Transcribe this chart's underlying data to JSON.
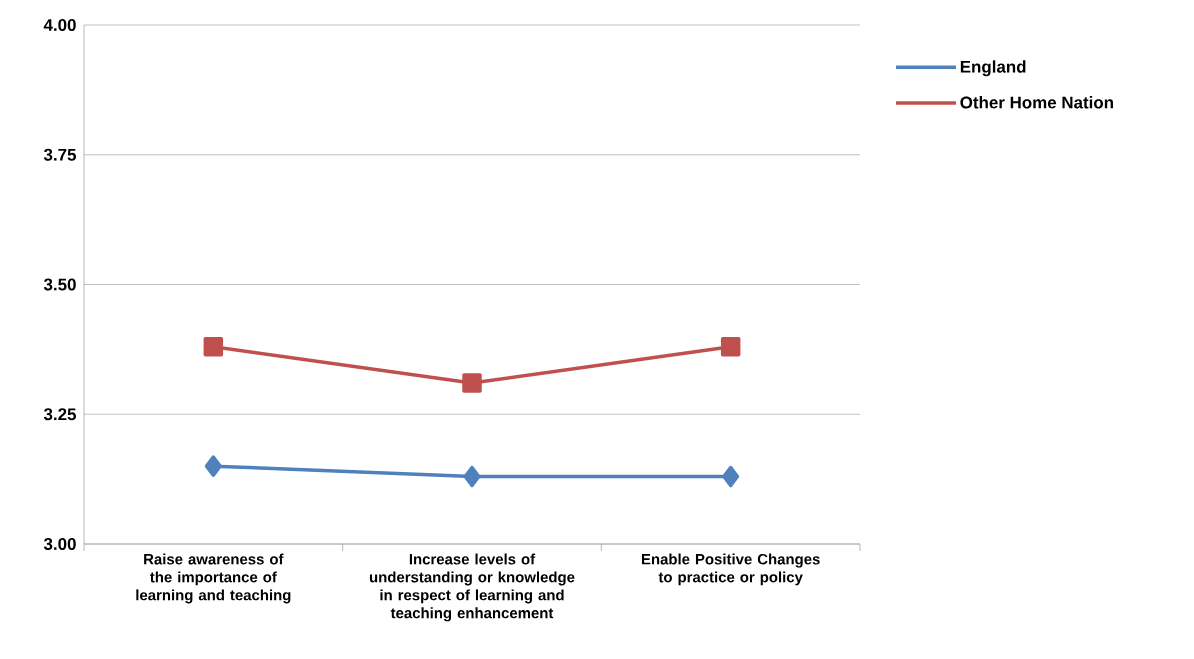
{
  "chart_data": {
    "type": "line",
    "categories": [
      "Raise awareness of the importance of learning and teaching",
      "Increase levels of understanding or knowledge in respect of learning and teaching enhancement",
      "Enable Positive Changes to practice or policy"
    ],
    "series": [
      {
        "name": "England",
        "color": "#4f81bd",
        "marker": "diamond",
        "values": [
          3.15,
          3.13,
          3.13
        ]
      },
      {
        "name": "Other Home Nation",
        "color": "#c0504d",
        "marker": "square",
        "values": [
          3.38,
          3.31,
          3.38
        ]
      }
    ],
    "ylim": [
      3.0,
      4.0
    ],
    "yticks": [
      {
        "value": 3.0,
        "label": "3.00"
      },
      {
        "value": 3.25,
        "label": "3.25"
      },
      {
        "value": 3.5,
        "label": "3.50"
      },
      {
        "value": 3.75,
        "label": "3.75"
      },
      {
        "value": 4.0,
        "label": "4.00"
      }
    ],
    "grid": "y",
    "legend": "right",
    "line_style": "solid"
  }
}
